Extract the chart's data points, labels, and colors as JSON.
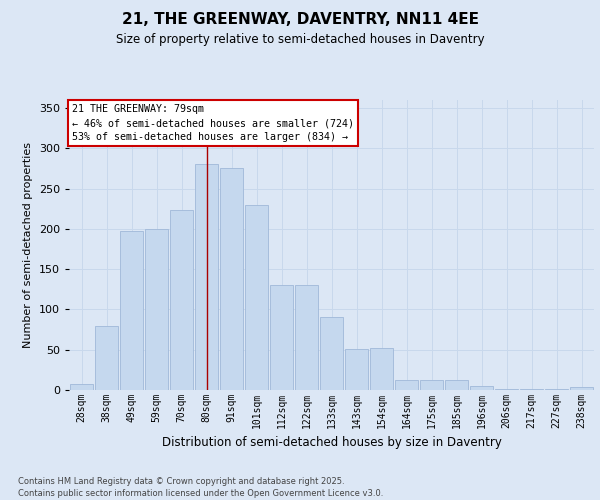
{
  "title": "21, THE GREENWAY, DAVENTRY, NN11 4EE",
  "subtitle": "Size of property relative to semi-detached houses in Daventry",
  "xlabel": "Distribution of semi-detached houses by size in Daventry",
  "ylabel": "Number of semi-detached properties",
  "categories": [
    "28sqm",
    "38sqm",
    "49sqm",
    "59sqm",
    "70sqm",
    "80sqm",
    "91sqm",
    "101sqm",
    "112sqm",
    "122sqm",
    "133sqm",
    "143sqm",
    "154sqm",
    "164sqm",
    "175sqm",
    "185sqm",
    "196sqm",
    "206sqm",
    "217sqm",
    "227sqm",
    "238sqm"
  ],
  "values": [
    8,
    79,
    197,
    200,
    224,
    280,
    275,
    230,
    130,
    130,
    91,
    51,
    52,
    13,
    12,
    12,
    5,
    1,
    1,
    1,
    4
  ],
  "bar_color": "#c5d8ee",
  "bar_edge_color": "#a0b8d8",
  "grid_color": "#c8d8ec",
  "background_color": "#dce7f5",
  "vline_x": 5,
  "vline_color": "#aa0000",
  "annotation_title": "21 THE GREENWAY: 79sqm",
  "annotation_line1": "← 46% of semi-detached houses are smaller (724)",
  "annotation_line2": "53% of semi-detached houses are larger (834) →",
  "annotation_box_color": "#ffffff",
  "annotation_box_edge": "#cc0000",
  "ylim": [
    0,
    360
  ],
  "yticks": [
    0,
    50,
    100,
    150,
    200,
    250,
    300,
    350
  ],
  "footer_line1": "Contains HM Land Registry data © Crown copyright and database right 2025.",
  "footer_line2": "Contains public sector information licensed under the Open Government Licence v3.0."
}
